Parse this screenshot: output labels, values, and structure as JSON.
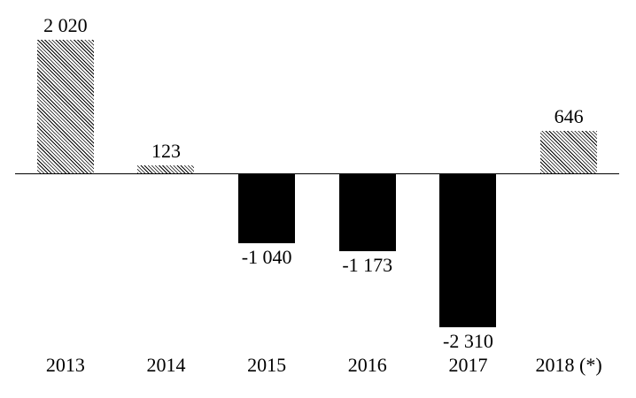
{
  "chart_data": {
    "type": "bar",
    "categories": [
      "2013",
      "2014",
      "2015",
      "2016",
      "2017",
      "2018 (*)"
    ],
    "values": [
      2020,
      123,
      -1040,
      -1173,
      -2310,
      646
    ],
    "value_labels": [
      "2 020",
      "123",
      "-1 040",
      "-1 173",
      "-2 310",
      "646"
    ],
    "series_name": "",
    "title": "",
    "xlabel": "",
    "ylabel": "",
    "ylim": [
      -2600,
      2300
    ],
    "baseline": 0,
    "grid": false,
    "legend": false,
    "axis_line": "x-baseline-only",
    "bar_style_positive": "diagonal-hatch",
    "bar_style_negative": "solid",
    "colors": {
      "bar": "#000000",
      "background": "#ffffff",
      "axis": "#000000",
      "text": "#000000"
    }
  }
}
